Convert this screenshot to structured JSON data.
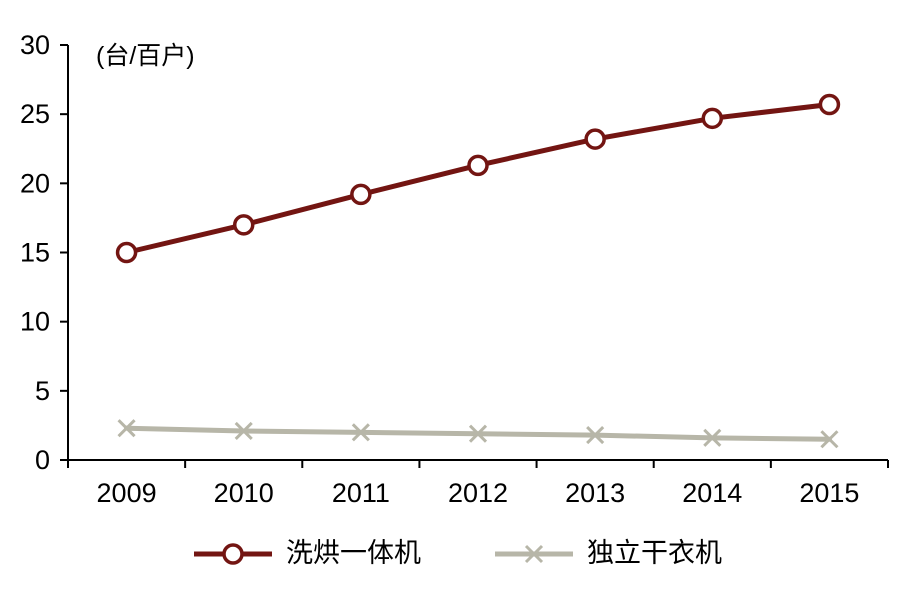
{
  "chart_data": {
    "type": "line",
    "title": "",
    "unit_label": "(台/百户)",
    "categories": [
      "2009",
      "2010",
      "2011",
      "2012",
      "2013",
      "2014",
      "2015"
    ],
    "series": [
      {
        "name": "洗烘一体机",
        "values": [
          15.0,
          17.0,
          19.2,
          21.3,
          23.2,
          24.7,
          25.7
        ],
        "color": "#731512",
        "marker": "circle"
      },
      {
        "name": "独立干衣机",
        "values": [
          2.3,
          2.1,
          2.0,
          1.9,
          1.8,
          1.6,
          1.5
        ],
        "color": "#b7b6a8",
        "marker": "x"
      }
    ],
    "ylim": [
      0,
      30
    ],
    "ytick_step": 5,
    "yticks": [
      "0",
      "5",
      "10",
      "15",
      "20",
      "25",
      "30"
    ],
    "grid": false,
    "legend_position": "bottom"
  },
  "colors": {
    "axis": "#000000",
    "text": "#000000",
    "background": "#ffffff"
  }
}
